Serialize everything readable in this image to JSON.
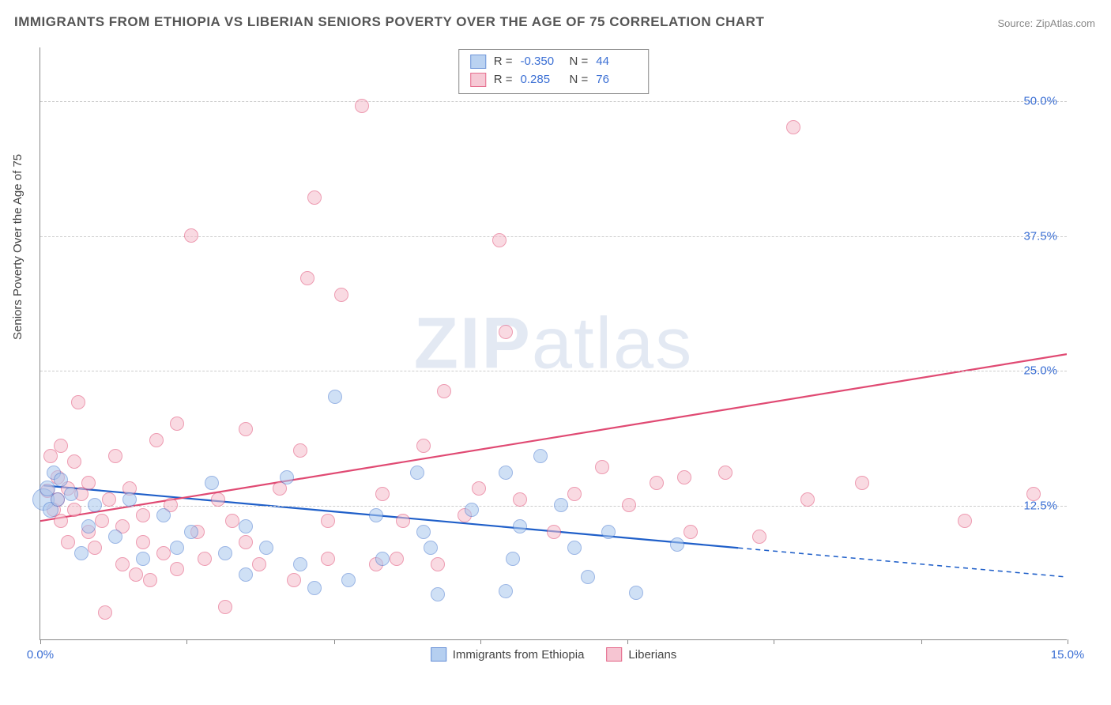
{
  "title": "IMMIGRANTS FROM ETHIOPIA VS LIBERIAN SENIORS POVERTY OVER THE AGE OF 75 CORRELATION CHART",
  "source_prefix": "Source: ",
  "source_name": "ZipAtlas.com",
  "watermark_bold": "ZIP",
  "watermark_light": "atlas",
  "chart": {
    "type": "scatter",
    "y_axis_label": "Seniors Poverty Over the Age of 75",
    "xlim": [
      0,
      15
    ],
    "ylim": [
      0,
      55
    ],
    "x_ticks": [
      0,
      2.14,
      4.29,
      6.43,
      8.57,
      10.71,
      12.86,
      15
    ],
    "x_tick_labels": {
      "0": "0.0%",
      "15": "15.0%"
    },
    "y_ticks": [
      12.5,
      25.0,
      37.5,
      50.0
    ],
    "y_tick_labels": [
      "12.5%",
      "25.0%",
      "37.5%",
      "50.0%"
    ],
    "background_color": "#ffffff",
    "grid_color": "#cccccc",
    "series": [
      {
        "name": "Immigrants from Ethiopia",
        "fill": "#a9c7ee",
        "stroke": "#4a7bd0",
        "fill_opacity": 0.55,
        "stroke_width": 1.2,
        "marker_radius": 9,
        "R": "-0.350",
        "N": "44",
        "trend": {
          "x1": 0.05,
          "y1": 14.3,
          "x2": 10.2,
          "y2": 8.5,
          "x2_dash": 15.0,
          "y2_dash": 5.8,
          "color": "#1f5fc9",
          "width": 2.2
        },
        "points": [
          [
            0.05,
            13.0,
            14
          ],
          [
            0.1,
            14.0,
            10
          ],
          [
            0.15,
            12.0,
            10
          ],
          [
            0.2,
            15.5,
            9
          ],
          [
            0.25,
            13.0,
            9
          ],
          [
            0.3,
            14.8,
            9
          ],
          [
            0.45,
            13.5,
            9
          ],
          [
            0.6,
            8.0,
            9
          ],
          [
            0.7,
            10.5,
            9
          ],
          [
            0.8,
            12.5,
            9
          ],
          [
            1.1,
            9.5,
            9
          ],
          [
            1.3,
            13.0,
            9
          ],
          [
            1.5,
            7.5,
            9
          ],
          [
            1.8,
            11.5,
            9
          ],
          [
            2.0,
            8.5,
            9
          ],
          [
            2.2,
            10.0,
            9
          ],
          [
            2.5,
            14.5,
            9
          ],
          [
            2.7,
            8.0,
            9
          ],
          [
            3.0,
            6.0,
            9
          ],
          [
            3.0,
            10.5,
            9
          ],
          [
            3.3,
            8.5,
            9
          ],
          [
            3.6,
            15.0,
            9
          ],
          [
            3.8,
            7.0,
            9
          ],
          [
            4.0,
            4.8,
            9
          ],
          [
            4.3,
            22.5,
            9
          ],
          [
            4.5,
            5.5,
            9
          ],
          [
            4.9,
            11.5,
            9
          ],
          [
            5.0,
            7.5,
            9
          ],
          [
            5.5,
            15.5,
            9
          ],
          [
            5.6,
            10.0,
            9
          ],
          [
            5.7,
            8.5,
            9
          ],
          [
            5.8,
            4.2,
            9
          ],
          [
            6.3,
            12.0,
            9
          ],
          [
            6.8,
            15.5,
            9
          ],
          [
            6.8,
            4.5,
            9
          ],
          [
            6.9,
            7.5,
            9
          ],
          [
            7.0,
            10.5,
            9
          ],
          [
            7.3,
            17.0,
            9
          ],
          [
            7.6,
            12.5,
            9
          ],
          [
            7.8,
            8.5,
            9
          ],
          [
            8.0,
            5.8,
            9
          ],
          [
            8.3,
            10.0,
            9
          ],
          [
            8.7,
            4.3,
            9
          ],
          [
            9.3,
            8.8,
            9
          ]
        ]
      },
      {
        "name": "Liberians",
        "fill": "#f5bccb",
        "stroke": "#e04a73",
        "fill_opacity": 0.55,
        "stroke_width": 1.2,
        "marker_radius": 9,
        "R": "0.285",
        "N": "76",
        "trend": {
          "x1": 0.0,
          "y1": 11.0,
          "x2": 15.0,
          "y2": 26.5,
          "color": "#e04a73",
          "width": 2.2
        },
        "points": [
          [
            0.1,
            13.8,
            9
          ],
          [
            0.15,
            17.0,
            9
          ],
          [
            0.2,
            12.0,
            9
          ],
          [
            0.25,
            15.0,
            9
          ],
          [
            0.25,
            13.0,
            9
          ],
          [
            0.3,
            18.0,
            9
          ],
          [
            0.3,
            11.0,
            9
          ],
          [
            0.4,
            14.0,
            9
          ],
          [
            0.4,
            9.0,
            9
          ],
          [
            0.5,
            16.5,
            9
          ],
          [
            0.5,
            12.0,
            9
          ],
          [
            0.55,
            22.0,
            9
          ],
          [
            0.6,
            13.5,
            9
          ],
          [
            0.7,
            10.0,
            9
          ],
          [
            0.7,
            14.5,
            9
          ],
          [
            0.8,
            8.5,
            9
          ],
          [
            0.9,
            11.0,
            9
          ],
          [
            0.95,
            2.5,
            9
          ],
          [
            1.0,
            13.0,
            9
          ],
          [
            1.1,
            17.0,
            9
          ],
          [
            1.2,
            7.0,
            9
          ],
          [
            1.2,
            10.5,
            9
          ],
          [
            1.3,
            14.0,
            9
          ],
          [
            1.4,
            6.0,
            9
          ],
          [
            1.5,
            9.0,
            9
          ],
          [
            1.5,
            11.5,
            9
          ],
          [
            1.6,
            5.5,
            9
          ],
          [
            1.7,
            18.5,
            9
          ],
          [
            1.8,
            8.0,
            9
          ],
          [
            1.9,
            12.5,
            9
          ],
          [
            2.0,
            6.5,
            9
          ],
          [
            2.0,
            20.0,
            9
          ],
          [
            2.2,
            37.5,
            9
          ],
          [
            2.3,
            10.0,
            9
          ],
          [
            2.4,
            7.5,
            9
          ],
          [
            2.6,
            13.0,
            9
          ],
          [
            2.7,
            3.0,
            9
          ],
          [
            2.8,
            11.0,
            9
          ],
          [
            3.0,
            9.0,
            9
          ],
          [
            3.0,
            19.5,
            9
          ],
          [
            3.2,
            7.0,
            9
          ],
          [
            3.5,
            14.0,
            9
          ],
          [
            3.7,
            5.5,
            9
          ],
          [
            3.8,
            17.5,
            9
          ],
          [
            3.9,
            33.5,
            9
          ],
          [
            4.0,
            41.0,
            9
          ],
          [
            4.2,
            11.0,
            9
          ],
          [
            4.2,
            7.5,
            9
          ],
          [
            4.4,
            32.0,
            9
          ],
          [
            4.7,
            49.5,
            9
          ],
          [
            4.9,
            7.0,
            9
          ],
          [
            5.0,
            13.5,
            9
          ],
          [
            5.2,
            7.5,
            9
          ],
          [
            5.3,
            11.0,
            9
          ],
          [
            5.6,
            18.0,
            9
          ],
          [
            5.8,
            7.0,
            9
          ],
          [
            5.9,
            23.0,
            9
          ],
          [
            6.2,
            11.5,
            9
          ],
          [
            6.4,
            14.0,
            9
          ],
          [
            6.7,
            37.0,
            9
          ],
          [
            6.8,
            28.5,
            9
          ],
          [
            7.0,
            13.0,
            9
          ],
          [
            7.5,
            10.0,
            9
          ],
          [
            7.8,
            13.5,
            9
          ],
          [
            8.2,
            16.0,
            9
          ],
          [
            8.6,
            12.5,
            9
          ],
          [
            9.0,
            14.5,
            9
          ],
          [
            9.4,
            15.0,
            9
          ],
          [
            9.5,
            10.0,
            9
          ],
          [
            10.0,
            15.5,
            9
          ],
          [
            10.5,
            9.5,
            9
          ],
          [
            11.0,
            47.5,
            9
          ],
          [
            11.2,
            13.0,
            9
          ],
          [
            12.0,
            14.5,
            9
          ],
          [
            13.5,
            11.0,
            9
          ],
          [
            14.5,
            13.5,
            9
          ]
        ]
      }
    ]
  },
  "legend_top": {
    "r_label": "R =",
    "n_label": "N ="
  },
  "legend_bottom": [
    {
      "label": "Immigrants from Ethiopia",
      "series": 0
    },
    {
      "label": "Liberians",
      "series": 1
    }
  ]
}
